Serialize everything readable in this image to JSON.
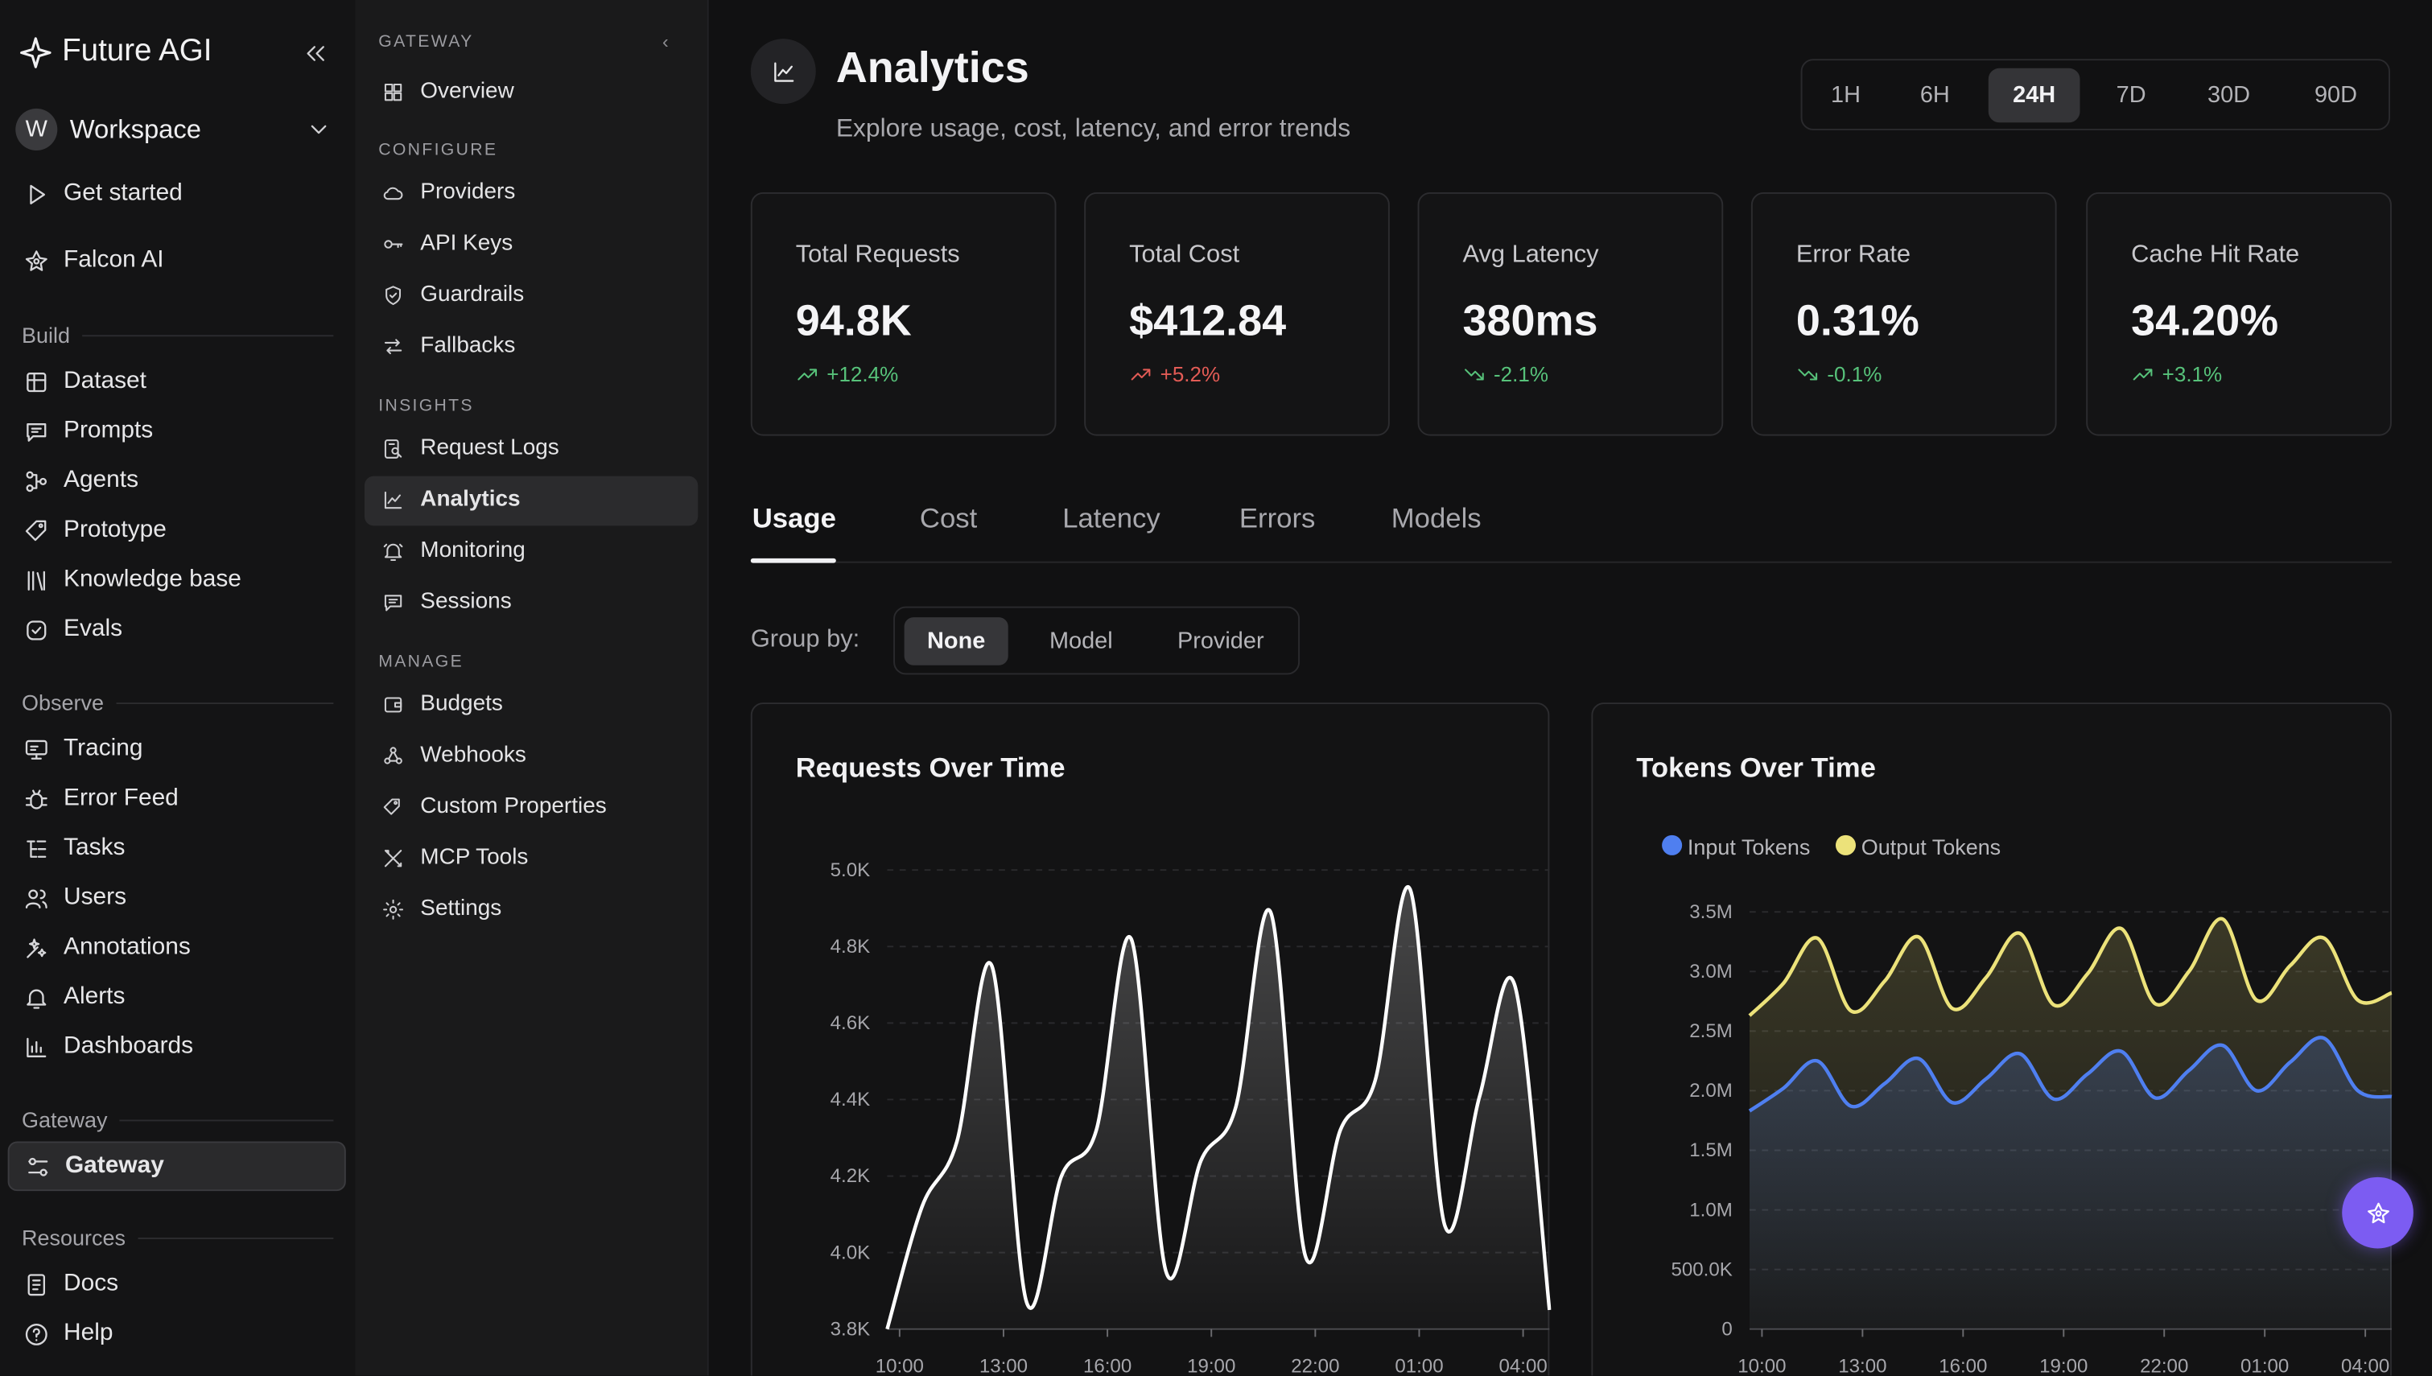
{
  "brand": {
    "name": "Future AGI"
  },
  "workspace": {
    "initial": "W",
    "name": "Workspace"
  },
  "nav": {
    "top": [
      {
        "label": "Get started"
      },
      {
        "label": "Falcon AI"
      }
    ],
    "sections": {
      "build": "Build",
      "observe": "Observe",
      "gateway": "Gateway",
      "resources": "Resources"
    },
    "build": [
      "Dataset",
      "Prompts",
      "Agents",
      "Prototype",
      "Knowledge base",
      "Evals"
    ],
    "observe": [
      "Tracing",
      "Error Feed",
      "Tasks",
      "Users",
      "Annotations",
      "Alerts",
      "Dashboards"
    ],
    "gateway": [
      "Gateway"
    ],
    "resources": [
      "Docs",
      "Help"
    ]
  },
  "subnav": {
    "header": "GATEWAY",
    "overview": "Overview",
    "configure_caption": "CONFIGURE",
    "configure": [
      "Providers",
      "API Keys",
      "Guardrails",
      "Fallbacks"
    ],
    "insights_caption": "INSIGHTS",
    "insights": [
      "Request Logs",
      "Analytics",
      "Monitoring",
      "Sessions"
    ],
    "manage_caption": "MANAGE",
    "manage": [
      "Budgets",
      "Webhooks",
      "Custom Properties",
      "MCP Tools",
      "Settings"
    ]
  },
  "header": {
    "title": "Analytics",
    "subtitle": "Explore usage, cost, latency, and error trends"
  },
  "time_range": {
    "options": [
      "1H",
      "6H",
      "24H",
      "7D",
      "30D",
      "90D"
    ],
    "selected": "24H"
  },
  "stats": [
    {
      "label": "Total Requests",
      "value": "94.8K",
      "delta": "+12.4%",
      "trend": "up",
      "color": "#57c27a"
    },
    {
      "label": "Total Cost",
      "value": "$412.84",
      "delta": "+5.2%",
      "trend": "up",
      "color": "#e25b55"
    },
    {
      "label": "Avg Latency",
      "value": "380ms",
      "delta": "-2.1%",
      "trend": "down",
      "color": "#57c27a"
    },
    {
      "label": "Error Rate",
      "value": "0.31%",
      "delta": "-0.1%",
      "trend": "down",
      "color": "#57c27a"
    },
    {
      "label": "Cache Hit Rate",
      "value": "34.20%",
      "delta": "+3.1%",
      "trend": "up",
      "color": "#57c27a"
    }
  ],
  "tabs": {
    "items": [
      "Usage",
      "Cost",
      "Latency",
      "Errors",
      "Models"
    ],
    "selected": "Usage"
  },
  "group_by": {
    "label": "Group by:",
    "options": [
      "None",
      "Model",
      "Provider"
    ],
    "selected": "None"
  },
  "chart_data": [
    {
      "type": "area",
      "title": "Requests Over Time",
      "x": [
        "10:00",
        "11:00",
        "12:00",
        "13:00",
        "14:00",
        "15:00",
        "16:00",
        "17:00",
        "18:00",
        "19:00",
        "20:00",
        "21:00",
        "22:00",
        "23:00",
        "00:00",
        "01:00",
        "02:00",
        "03:00",
        "04:00",
        "04:30"
      ],
      "xticks": [
        "10:00",
        "13:00",
        "16:00",
        "19:00",
        "22:00",
        "01:00",
        "04:00"
      ],
      "yticks": [
        "3.8K",
        "4.0K",
        "4.2K",
        "4.4K",
        "4.6K",
        "4.8K",
        "5.0K"
      ],
      "ylim": [
        3800,
        5000
      ],
      "series": [
        {
          "values": [
            3800,
            4120,
            4290,
            4750,
            3870,
            4200,
            4320,
            4820,
            3950,
            4240,
            4380,
            4890,
            3990,
            4320,
            4450,
            4950,
            4070,
            4410,
            4700,
            3850
          ]
        }
      ],
      "line_color": "#ffffff",
      "grid": true
    },
    {
      "type": "area",
      "title": "Tokens Over Time",
      "x": [
        "10:00",
        "11:00",
        "12:00",
        "13:00",
        "14:00",
        "15:00",
        "16:00",
        "17:00",
        "18:00",
        "19:00",
        "20:00",
        "21:00",
        "22:00",
        "23:00",
        "00:00",
        "01:00",
        "02:00",
        "03:00",
        "04:00",
        "04:30"
      ],
      "xticks": [
        "10:00",
        "13:00",
        "16:00",
        "19:00",
        "22:00",
        "01:00",
        "04:00"
      ],
      "yticks": [
        "0",
        "500.0K",
        "1.0M",
        "1.5M",
        "2.0M",
        "2.5M",
        "3.0M",
        "3.5M"
      ],
      "ylim": [
        0,
        3500000
      ],
      "legend_position": "top-left",
      "series": [
        {
          "name": "Input Tokens",
          "color": "#4f7ff0",
          "values": [
            1830000,
            2020000,
            2250000,
            1870000,
            2060000,
            2270000,
            1900000,
            2100000,
            2310000,
            1930000,
            2140000,
            2330000,
            1940000,
            2170000,
            2380000,
            2000000,
            2240000,
            2440000,
            2000000,
            1950000
          ]
        },
        {
          "name": "Output Tokens",
          "color": "#ece27a",
          "values": [
            2630000,
            2900000,
            3280000,
            2670000,
            2920000,
            3290000,
            2690000,
            2950000,
            3320000,
            2720000,
            2980000,
            3360000,
            2730000,
            3000000,
            3440000,
            2760000,
            3050000,
            3280000,
            2760000,
            2820000
          ]
        }
      ],
      "grid": true
    }
  ]
}
